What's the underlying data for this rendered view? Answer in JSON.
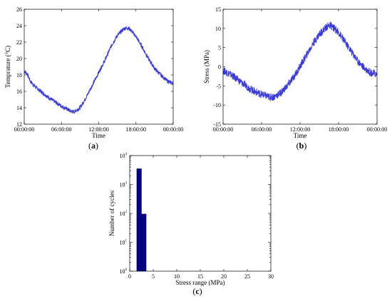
{
  "chart_data": [
    {
      "id": "a",
      "panel_label": "a",
      "type": "line",
      "xlabel": "Time",
      "ylabel": "Temprature (°C)",
      "xticks": [
        "00:00:00",
        "06:00:00",
        "12:00:00",
        "18:00:00",
        "00:00:00"
      ],
      "xlim": [
        0,
        24
      ],
      "ylim": [
        12,
        26
      ],
      "yticks": [
        12,
        14,
        16,
        18,
        20,
        22,
        24,
        26
      ],
      "color": "#3b3bdc",
      "noise": 0.25,
      "series": [
        {
          "x": [
            0,
            0.5,
            1,
            2,
            3,
            4,
            5,
            6,
            7,
            7.6,
            8,
            9,
            10,
            11,
            12,
            13,
            14,
            15,
            16,
            16.5,
            17,
            18,
            19,
            20,
            21,
            22,
            23,
            23.5,
            24
          ],
          "y": [
            18.5,
            18.1,
            17.2,
            16.4,
            15.8,
            15.2,
            14.7,
            14.2,
            13.8,
            13.55,
            13.5,
            14.0,
            15.3,
            16.8,
            18.3,
            19.8,
            21.5,
            22.8,
            23.6,
            23.75,
            23.6,
            22.7,
            21.4,
            20.0,
            18.8,
            18.0,
            17.3,
            17.1,
            17.0
          ]
        }
      ]
    },
    {
      "id": "b",
      "panel_label": "b",
      "type": "line",
      "xlabel": "Time",
      "ylabel": "Stress (MPa)",
      "xticks": [
        "00:00:00",
        "06:00:00",
        "12:00:00",
        "18:00:00",
        "00:00:00"
      ],
      "xlim": [
        0,
        24
      ],
      "ylim": [
        -15,
        15
      ],
      "yticks": [
        -15,
        -10,
        -5,
        0,
        5,
        10,
        15
      ],
      "color": "#3b3bdc",
      "noise": 1.0,
      "series": [
        {
          "x": [
            0,
            1,
            2,
            3,
            4,
            5,
            6,
            7,
            7.6,
            8,
            9,
            10,
            11,
            12,
            13,
            14,
            15,
            16,
            16.5,
            17,
            18,
            19,
            20,
            21,
            22,
            23,
            24
          ],
          "y": [
            -1.0,
            -1.8,
            -3.0,
            -4.3,
            -5.5,
            -6.5,
            -7.2,
            -7.8,
            -8.0,
            -7.8,
            -6.8,
            -5.0,
            -2.7,
            0.0,
            3.0,
            6.0,
            8.5,
            10.2,
            10.8,
            10.5,
            9.0,
            6.5,
            4.0,
            1.5,
            -0.3,
            -1.5,
            -2.0
          ]
        }
      ]
    },
    {
      "id": "c",
      "panel_label": "c",
      "type": "bar",
      "xlabel": "Stress range (MPa)",
      "ylabel": "Number of cycles",
      "xlim": [
        0,
        30
      ],
      "xticks": [
        0,
        5,
        10,
        15,
        20,
        25,
        30
      ],
      "yscale": "log",
      "ylim": [
        1,
        10000
      ],
      "yticks_base": [
        "10",
        "10",
        "10",
        "10",
        "10"
      ],
      "yticks_exp": [
        "0",
        "1",
        "2",
        "3",
        "4"
      ],
      "color": "#00008b",
      "bars": [
        {
          "x0": 1.5,
          "x1": 2.5,
          "value": 3500
        },
        {
          "x0": 2.5,
          "x1": 3.5,
          "value": 95
        }
      ]
    }
  ]
}
